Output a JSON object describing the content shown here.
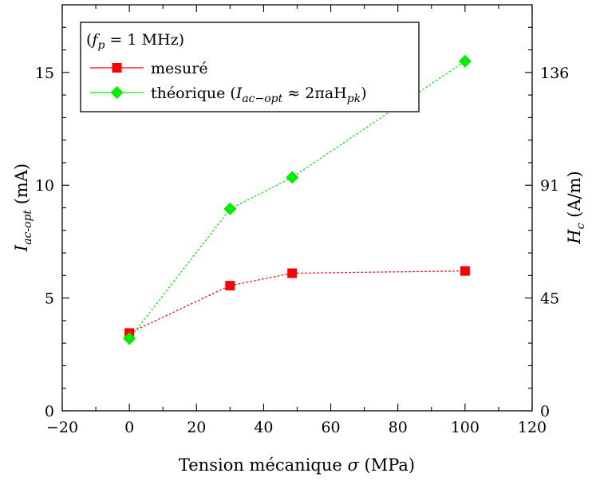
{
  "chart_data": {
    "type": "line",
    "title": "",
    "xlabel": "Tension mécanique σ (MPa)",
    "xlabel_parts": {
      "text": "Tension mécanique ",
      "symbol": "σ",
      "unit": " (MPa)"
    },
    "ylabel_left": "I_ac-opt (mA)",
    "ylabel_left_parts": {
      "symbol": "I",
      "subscript": "ac-opt",
      "unit": " (mA)"
    },
    "ylabel_right": "H_c (A/m)",
    "ylabel_right_parts": {
      "symbol": "H",
      "subscript": "c",
      "unit": " (A/m)"
    },
    "xlim": [
      -20,
      120
    ],
    "ylim": [
      0,
      18
    ],
    "x_ticks": [
      -20,
      0,
      20,
      40,
      60,
      80,
      100,
      120
    ],
    "x_tick_labels": [
      "−20",
      "0",
      "20",
      "40",
      "60",
      "80",
      "100",
      "120"
    ],
    "y_ticks_left": [
      0,
      5,
      10,
      15
    ],
    "y_tick_labels_left": [
      "0",
      "5",
      "10",
      "15"
    ],
    "y_ticks_right": [
      0,
      5,
      10,
      15
    ],
    "y_tick_labels_right": [
      "0",
      "45",
      "91",
      "136"
    ],
    "grid": false,
    "legend_placement": "top-left",
    "legend_header": "(f_p = 1 MHz)",
    "legend_header_parts": {
      "open": "(",
      "symbol": "f",
      "subscript": "p",
      "rest": " = 1 MHz)"
    },
    "series": [
      {
        "name": "mesuré",
        "color": "#ff0000",
        "marker": "square",
        "line_style": "dotted",
        "x": [
          0,
          30,
          48.5,
          100
        ],
        "y": [
          3.45,
          5.55,
          6.1,
          6.2
        ]
      },
      {
        "name": "théorique (I_ac-opt ≈ 2πaH_pk)",
        "name_parts": {
          "text": "théorique (",
          "symbol": "I",
          "subscript": "ac−opt",
          "mid": " ≈ 2πaH",
          "subscript2": "pk",
          "close": ")"
        },
        "color": "#00ee00",
        "marker": "diamond",
        "line_style": "dotted",
        "x": [
          0,
          30,
          48.5,
          100
        ],
        "y": [
          3.2,
          8.95,
          10.35,
          15.5
        ]
      }
    ]
  }
}
